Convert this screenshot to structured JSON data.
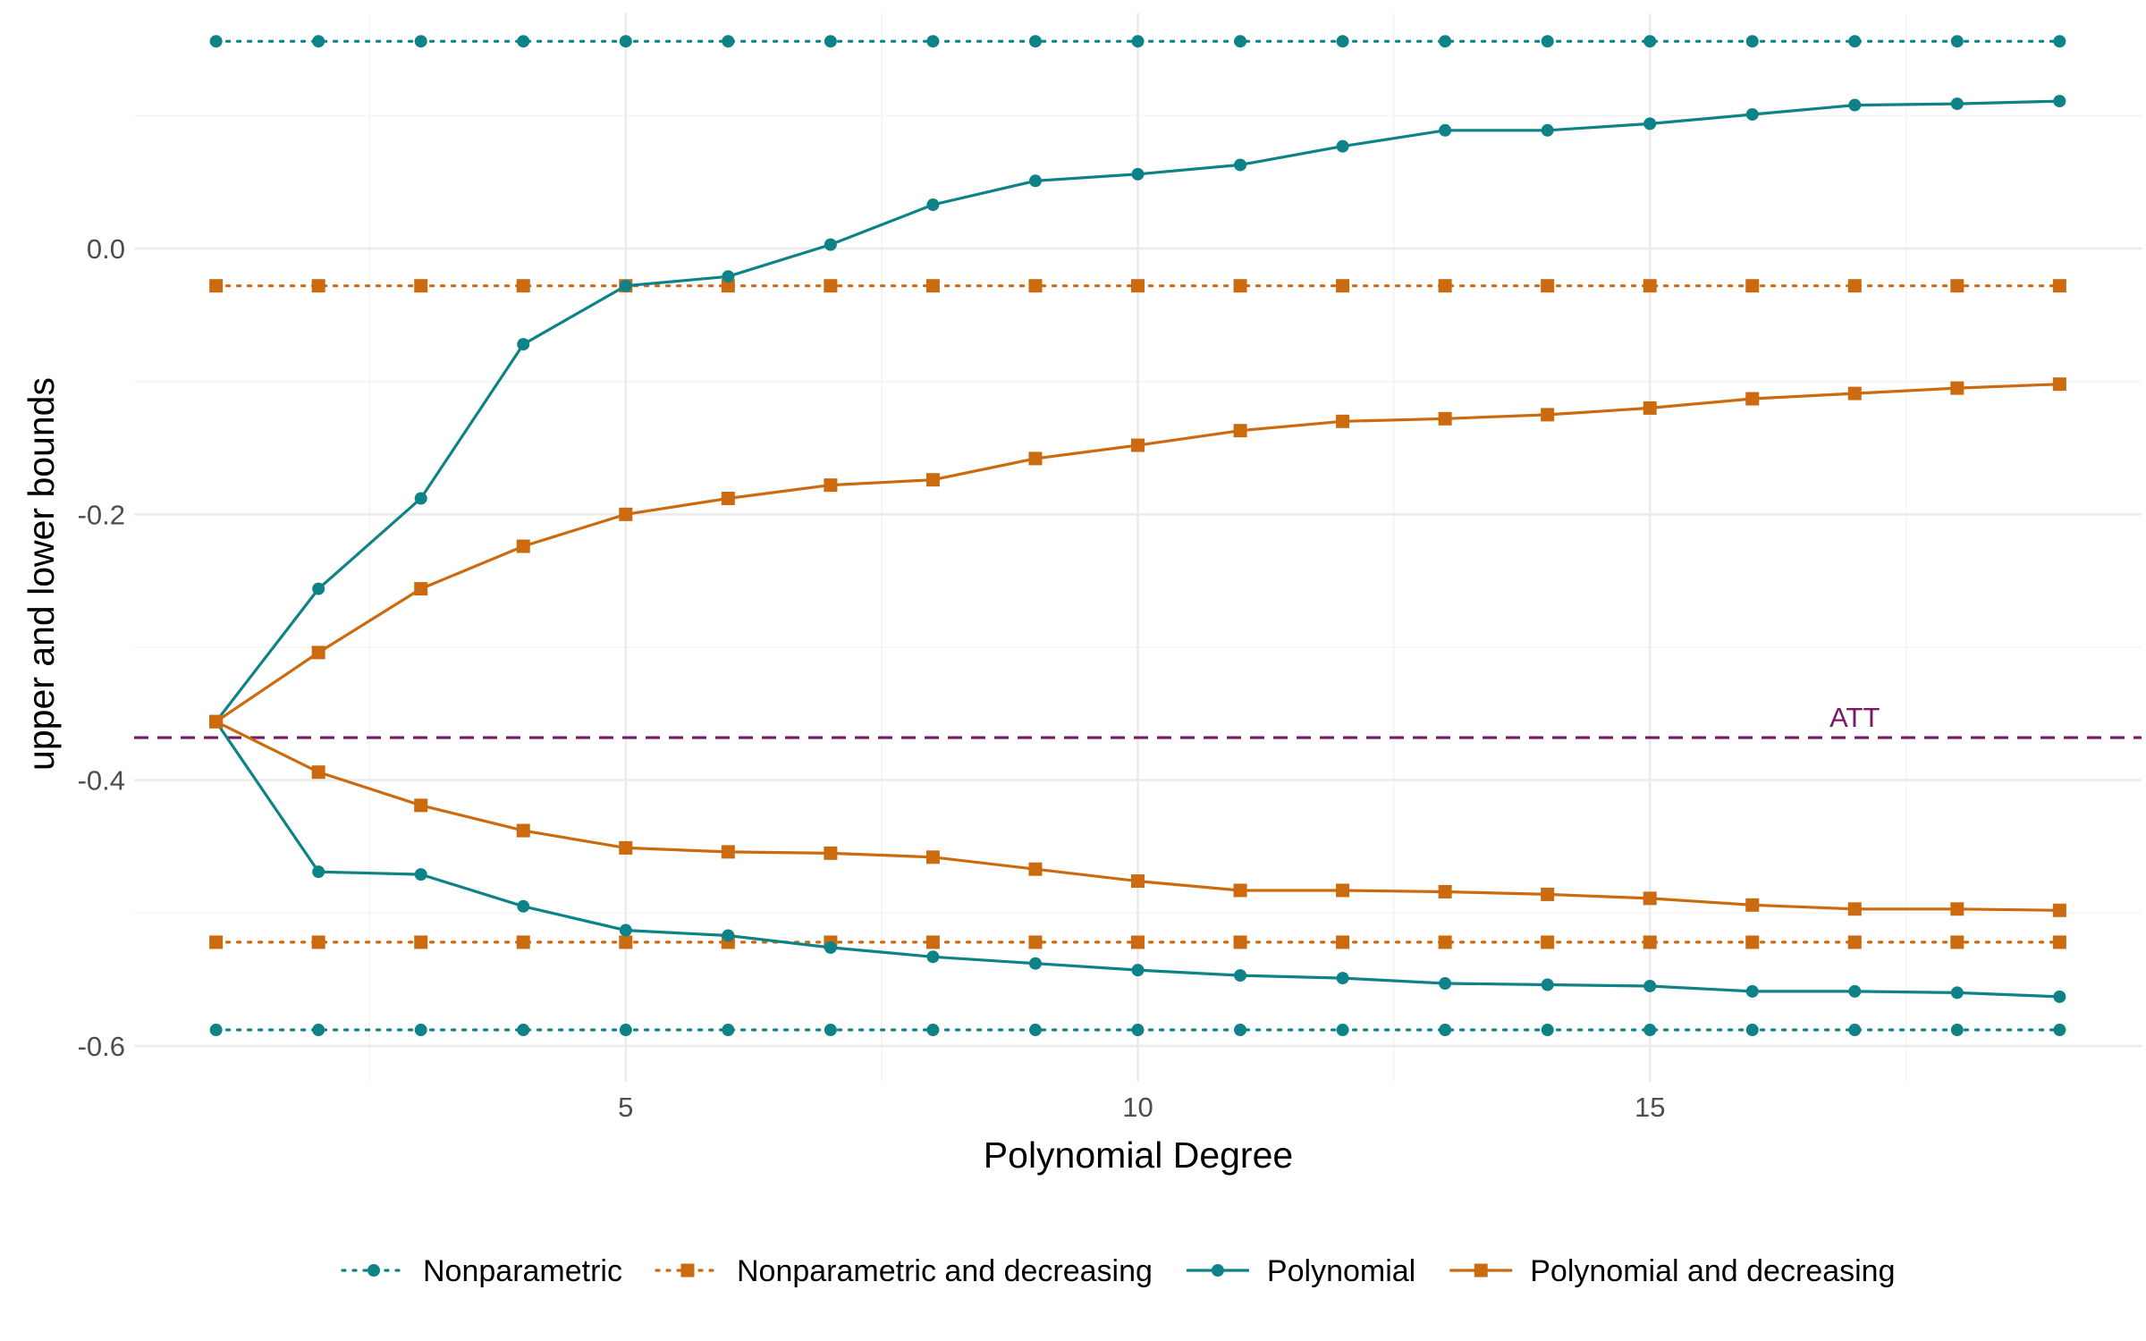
{
  "chart_data": {
    "type": "line",
    "title": "",
    "xlabel": "Polynomial Degree",
    "ylabel": "upper and lower bounds",
    "xlim": [
      0.2,
      19.8
    ],
    "ylim": [
      -0.627,
      0.177
    ],
    "x_ticks": [
      5,
      10,
      15
    ],
    "x_tick_labels": [
      "5",
      "10",
      "15"
    ],
    "y_ticks": [
      0.0,
      -0.2,
      -0.4,
      -0.6
    ],
    "y_tick_labels": [
      "0.0",
      "-0.2",
      "-0.4",
      "-0.6"
    ],
    "grid": true,
    "legend_position": "bottom",
    "x": [
      1,
      2,
      3,
      4,
      5,
      6,
      7,
      8,
      9,
      10,
      11,
      12,
      13,
      14,
      15,
      16,
      17,
      18,
      19
    ],
    "series": [
      {
        "name": "Nonparametric",
        "color": "#0e8387",
        "line_style": "dotted",
        "marker": "circle",
        "upper": [
          0.156,
          0.156,
          0.156,
          0.156,
          0.156,
          0.156,
          0.156,
          0.156,
          0.156,
          0.156,
          0.156,
          0.156,
          0.156,
          0.156,
          0.156,
          0.156,
          0.156,
          0.156,
          0.156
        ],
        "lower": [
          -0.588,
          -0.588,
          -0.588,
          -0.588,
          -0.588,
          -0.588,
          -0.588,
          -0.588,
          -0.588,
          -0.588,
          -0.588,
          -0.588,
          -0.588,
          -0.588,
          -0.588,
          -0.588,
          -0.588,
          -0.588,
          -0.588
        ]
      },
      {
        "name": "Nonparametric and decreasing",
        "color": "#cc6a0f",
        "line_style": "dotted",
        "marker": "square",
        "upper": [
          -0.028,
          -0.028,
          -0.028,
          -0.028,
          -0.028,
          -0.028,
          -0.028,
          -0.028,
          -0.028,
          -0.028,
          -0.028,
          -0.028,
          -0.028,
          -0.028,
          -0.028,
          -0.028,
          -0.028,
          -0.028,
          -0.028
        ],
        "lower": [
          -0.522,
          -0.522,
          -0.522,
          -0.522,
          -0.522,
          -0.522,
          -0.522,
          -0.522,
          -0.522,
          -0.522,
          -0.522,
          -0.522,
          -0.522,
          -0.522,
          -0.522,
          -0.522,
          -0.522,
          -0.522,
          -0.522
        ]
      },
      {
        "name": "Polynomial",
        "color": "#0e8387",
        "line_style": "solid",
        "marker": "circle",
        "upper": [
          -0.356,
          -0.256,
          -0.188,
          -0.072,
          -0.028,
          -0.021,
          0.003,
          0.033,
          0.051,
          0.056,
          0.063,
          0.077,
          0.089,
          0.089,
          0.094,
          0.101,
          0.108,
          0.109,
          0.111
        ],
        "lower": [
          -0.356,
          -0.469,
          -0.471,
          -0.495,
          -0.513,
          -0.517,
          -0.526,
          -0.533,
          -0.538,
          -0.543,
          -0.547,
          -0.549,
          -0.553,
          -0.554,
          -0.555,
          -0.559,
          -0.559,
          -0.56,
          -0.563
        ]
      },
      {
        "name": "Polynomial and decreasing",
        "color": "#cc6a0f",
        "line_style": "solid",
        "marker": "square",
        "upper": [
          -0.356,
          -0.304,
          -0.256,
          -0.224,
          -0.2,
          -0.188,
          -0.178,
          -0.174,
          -0.158,
          -0.148,
          -0.137,
          -0.13,
          -0.128,
          -0.125,
          -0.12,
          -0.113,
          -0.109,
          -0.105,
          -0.102
        ],
        "lower": [
          -0.356,
          -0.394,
          -0.419,
          -0.438,
          -0.451,
          -0.454,
          -0.455,
          -0.458,
          -0.467,
          -0.476,
          -0.483,
          -0.483,
          -0.484,
          -0.486,
          -0.489,
          -0.494,
          -0.497,
          -0.497,
          -0.498
        ]
      }
    ],
    "reference_lines": [
      {
        "label": "ATT",
        "y": -0.368,
        "color": "#7a1766",
        "line_style": "dashed",
        "label_x": 17
      }
    ]
  }
}
